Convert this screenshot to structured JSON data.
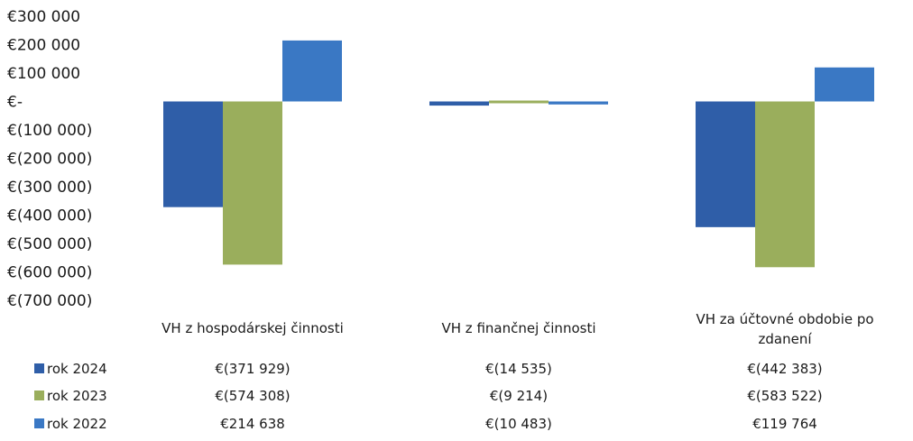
{
  "chart_data": {
    "type": "bar",
    "categories": [
      "VH z hospodárskej činnosti",
      "VH z finančnej činnosti",
      "VH za účtovné obdobie po zdanení"
    ],
    "category_lines": [
      [
        "VH z hospodárskej činnosti"
      ],
      [
        "VH z finančnej činnosti"
      ],
      [
        "VH za účtovné obdobie po",
        "zdanení"
      ]
    ],
    "series": [
      {
        "name": "rok 2024",
        "color": "#2f5ea8",
        "values": [
          -371929,
          -14535,
          -442383
        ],
        "labels": [
          "€(371 929)",
          "€(14 535)",
          "€(442 383)"
        ]
      },
      {
        "name": "rok 2023",
        "color": "#9aae5c",
        "values": [
          -574308,
          -9214,
          -583522
        ],
        "labels": [
          "€(574 308)",
          "€(9 214)",
          "€(583 522)"
        ]
      },
      {
        "name": "rok 2022",
        "color": "#3a78c4",
        "values": [
          214638,
          -10483,
          119764
        ],
        "labels": [
          "€214 638",
          "€(10 483)",
          "€119 764"
        ]
      }
    ],
    "ylim": [
      -700000,
      300000
    ],
    "ytick_labels": [
      "€300 000",
      "€200 000",
      "€100 000",
      "€-",
      "€(100 000)",
      "€(200 000)",
      "€(300 000)",
      "€(400 000)",
      "€(500 000)",
      "€(600 000)",
      "€(700 000)"
    ],
    "yticks": [
      300000,
      200000,
      100000,
      0,
      -100000,
      -200000,
      -300000,
      -400000,
      -500000,
      -600000,
      -700000
    ],
    "grid": false,
    "legend": "data table"
  }
}
